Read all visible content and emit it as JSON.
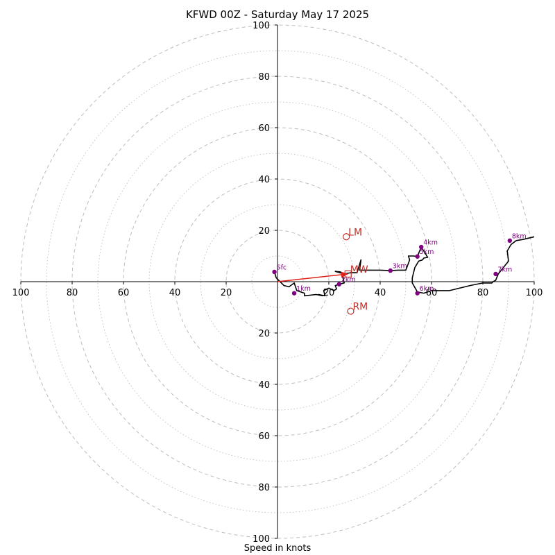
{
  "title": "KFWD 00Z - Saturday May 17 2025",
  "x_caption": "Speed in knots",
  "colors": {
    "ring": "#bdbdbd",
    "axis": "#000000",
    "trace": "#000000",
    "height_marker": "#800080",
    "motion": "#c0302a",
    "mean_wind_arrow": "#e0201a"
  },
  "chart_data": {
    "type": "line",
    "subtype": "hodograph",
    "units": "knots",
    "xlim": [
      -100,
      100
    ],
    "ylim": [
      -100,
      100
    ],
    "ring_step": 10,
    "labeled_rings": [
      20,
      40,
      60,
      80,
      100
    ],
    "x_tick_labels": [
      "100",
      "80",
      "60",
      "40",
      "20",
      "20",
      "40",
      "60",
      "80",
      "100"
    ],
    "y_tick_labels": [
      "100",
      "80",
      "60",
      "40",
      "20",
      "20",
      "40",
      "60",
      "80",
      "100"
    ],
    "grid": true,
    "trace": {
      "x": [
        -1.2,
        -0.5,
        2.5,
        4.5,
        6.5,
        7.5,
        10.5,
        10.5,
        15,
        17.5,
        16,
        18.5,
        18,
        20,
        22,
        23,
        22.5,
        24,
        26,
        25,
        24.5,
        22.5,
        26,
        28.5,
        31,
        32.5,
        32,
        40,
        44,
        47,
        50,
        51.5,
        51,
        53,
        54.5,
        56,
        58.5,
        57,
        56.5,
        55,
        53.5,
        52.5,
        52.5,
        54.5,
        57,
        60,
        67,
        75,
        80,
        83.5,
        84,
        85,
        86,
        90,
        89.5,
        91,
        93,
        96,
        100
      ],
      "y": [
        3.8,
        1.5,
        -1.5,
        -2,
        -0.5,
        -3.5,
        -4.5,
        -5.5,
        -5,
        -5.5,
        -5,
        -5.5,
        -3.5,
        -2.5,
        -3.5,
        -2.8,
        -1.5,
        -1,
        -0.5,
        3.5,
        3.8,
        4,
        3,
        3.5,
        3.5,
        8.5,
        4.5,
        4.5,
        4.3,
        4.5,
        4.5,
        8.5,
        10,
        10,
        9.8,
        13.5,
        9.5,
        9.2,
        8.5,
        8,
        5.5,
        1.5,
        -0.5,
        -4,
        -4.5,
        -3.5,
        -3.5,
        -1.5,
        -0.5,
        -0.5,
        0,
        0.5,
        3,
        8,
        12,
        14.5,
        16,
        16.5,
        17.5
      ]
    },
    "height_markers": [
      {
        "label": "Sfc",
        "x": -1.2,
        "y": 3.8
      },
      {
        "label": "1km",
        "x": 6.5,
        "y": -4.5
      },
      {
        "label": "2km",
        "x": 24,
        "y": -1
      },
      {
        "label": "3km",
        "x": 44,
        "y": 4.3
      },
      {
        "label": "4km",
        "x": 56,
        "y": 13.5
      },
      {
        "label": "5km",
        "x": 54.5,
        "y": 9.8
      },
      {
        "label": "6km",
        "x": 54.5,
        "y": -4.5
      },
      {
        "label": "7km",
        "x": 85,
        "y": 3
      },
      {
        "label": "8km",
        "x": 90.5,
        "y": 16
      }
    ],
    "storm_motion": [
      {
        "label": "LM",
        "x": 26.8,
        "y": 17.5
      },
      {
        "label": "MW",
        "x": 27.5,
        "y": 3
      },
      {
        "label": "RM",
        "x": 28.5,
        "y": -11.5
      }
    ],
    "mean_wind_vector": {
      "x0": 0,
      "y0": 0,
      "x1": 27.5,
      "y1": 3
    }
  }
}
